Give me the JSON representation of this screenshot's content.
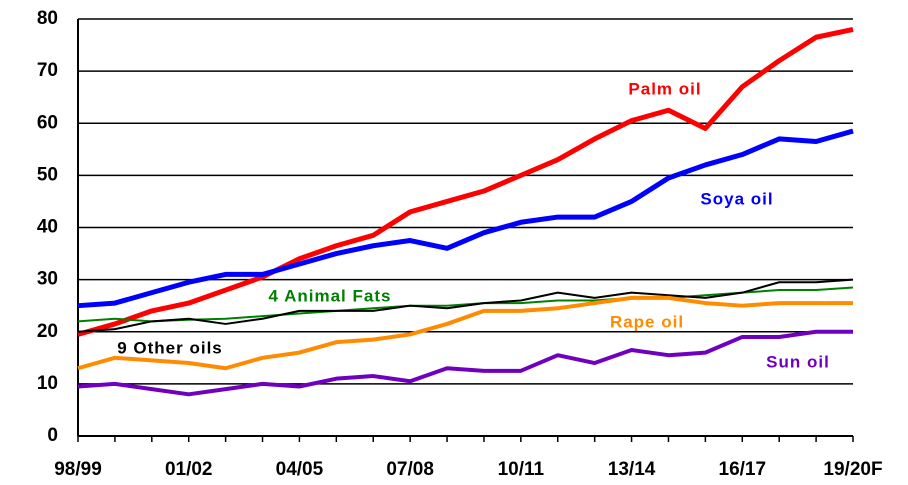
{
  "chart_data": {
    "type": "line",
    "categories": [
      "98/99",
      null,
      null,
      "01/02",
      null,
      null,
      "04/05",
      null,
      null,
      "07/08",
      null,
      null,
      "10/11",
      null,
      null,
      "13/14",
      null,
      null,
      "16/17",
      null,
      null,
      "19/20F"
    ],
    "series": [
      {
        "name": "Palm oil",
        "color": "#ff0000",
        "values": [
          19.5,
          21.5,
          24,
          25.5,
          28,
          30.5,
          34,
          36.5,
          38.5,
          43,
          45,
          47,
          50,
          53,
          57,
          60.5,
          62.5,
          59,
          67,
          72,
          76.5,
          78
        ]
      },
      {
        "name": "Soya oil",
        "color": "#0000ff",
        "values": [
          25,
          25.5,
          27.5,
          29.5,
          31,
          31,
          33,
          35,
          36.5,
          37.5,
          36,
          39,
          41,
          42,
          42,
          45,
          49.5,
          52,
          54,
          57,
          56.5,
          58.5
        ]
      },
      {
        "name": "4 Animal Fats",
        "color": "#008000",
        "values": [
          22,
          22.5,
          22,
          22.3,
          22.5,
          23,
          23.5,
          24,
          24.5,
          25,
          25,
          25.5,
          25.5,
          26,
          26,
          26.5,
          26.5,
          27,
          27.5,
          28,
          28,
          28.5
        ]
      },
      {
        "name": "9 Other oils",
        "color": "#000000",
        "values": [
          20,
          20.5,
          22,
          22.5,
          21.5,
          22.5,
          24,
          24,
          24,
          25,
          24.5,
          25.5,
          26,
          27.5,
          26.5,
          27.5,
          27,
          26.5,
          27.5,
          29.5,
          29.5,
          30
        ]
      },
      {
        "name": "Rape oil",
        "color": "#ff8c00",
        "values": [
          13,
          15,
          14.5,
          14,
          13,
          15,
          16,
          18,
          18.5,
          19.5,
          21.5,
          24,
          24,
          24.5,
          25.5,
          26.5,
          26.5,
          25.5,
          25,
          25.5,
          25.5,
          25.5
        ]
      },
      {
        "name": "Sun oil",
        "color": "#7000c0",
        "values": [
          9.5,
          10,
          9,
          8,
          9,
          10,
          9.5,
          11,
          11.5,
          10.5,
          13,
          12.5,
          12.5,
          15.5,
          14,
          16.5,
          15.5,
          16,
          19,
          19,
          20,
          20
        ]
      }
    ],
    "ylim": [
      0,
      80
    ],
    "yticks": [
      0,
      10,
      20,
      30,
      40,
      50,
      60,
      70,
      80
    ],
    "grid": true
  }
}
